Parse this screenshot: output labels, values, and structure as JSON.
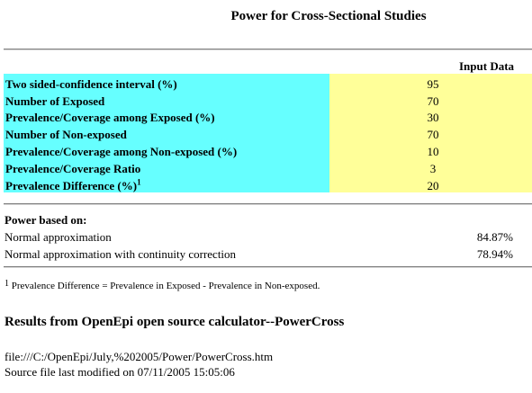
{
  "title": "Power for Cross-Sectional Studies",
  "input_header": "Input Data",
  "inputs": [
    {
      "label": "Two sided-confidence interval (%)",
      "value": "95"
    },
    {
      "label": "Number of Exposed",
      "value": "70"
    },
    {
      "label": "Prevalence/Coverage among Exposed (%)",
      "value": "30"
    },
    {
      "label": "Number of Non-exposed",
      "value": "70"
    },
    {
      "label": "Prevalence/Coverage among Non-exposed (%)",
      "value": "10"
    },
    {
      "label": "Prevalence/Coverage Ratio",
      "value": "3"
    },
    {
      "label": "Prevalence Difference (%)",
      "value": "20",
      "footnote_ref": "1"
    }
  ],
  "power": {
    "heading": "Power based on:",
    "rows": [
      {
        "label": "Normal approximation",
        "value": "84.87%"
      },
      {
        "label": "Normal approximation with continuity correction",
        "value": "78.94%"
      }
    ]
  },
  "footnote": {
    "marker": "1",
    "text": " Prevalence Difference = Prevalence in Exposed - Prevalence in Non-exposed."
  },
  "results_heading": "Results from OpenEpi open source calculator--PowerCross",
  "file_path": "file:///C:/OpenEpi/July,%202005/Power/PowerCross.htm",
  "last_modified": "Source file last modified on 07/11/2005 15:05:06",
  "colors": {
    "label_bg": "#66ffff",
    "value_bg": "#ffff99"
  }
}
